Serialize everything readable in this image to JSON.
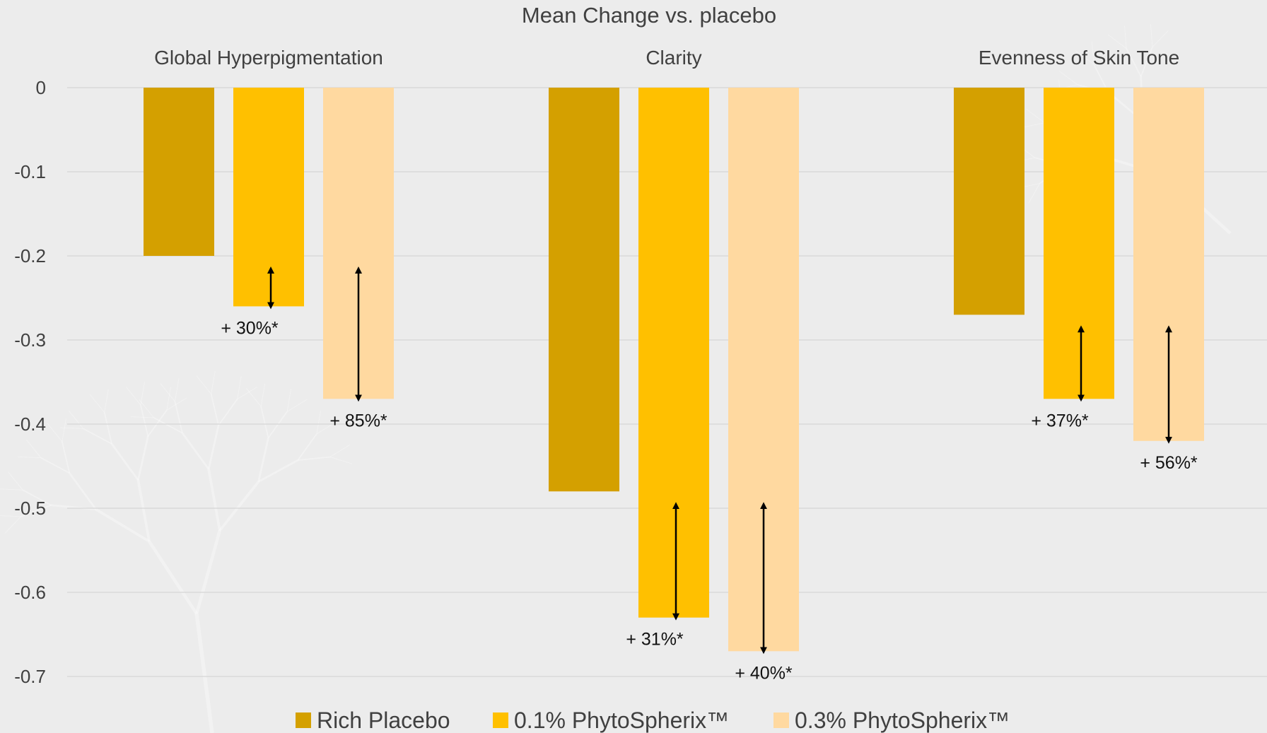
{
  "chart_data": {
    "type": "bar",
    "title": "Mean Change vs. placebo",
    "categories": [
      "Global Hyperpigmentation",
      "Clarity",
      "Evenness of Skin Tone"
    ],
    "series": [
      {
        "name": "Rich Placebo",
        "color": "#D4A000",
        "values": [
          -0.2,
          -0.48,
          -0.27
        ]
      },
      {
        "name": "0.1% PhytoSpherix™",
        "color": "#FFC000",
        "values": [
          -0.26,
          -0.63,
          -0.37
        ]
      },
      {
        "name": "0.3% PhytoSpherix™",
        "color": "#FFD9A0",
        "values": [
          -0.37,
          -0.67,
          -0.42
        ]
      }
    ],
    "annotations": [
      {
        "category": "Global Hyperpigmentation",
        "series": "0.1% PhytoSpherix™",
        "text": "+ 30%*",
        "from": -0.2,
        "to": -0.26
      },
      {
        "category": "Global Hyperpigmentation",
        "series": "0.3% PhytoSpherix™",
        "text": "+ 85%*",
        "from": -0.2,
        "to": -0.37
      },
      {
        "category": "Clarity",
        "series": "0.1% PhytoSpherix™",
        "text": "+ 31%*",
        "from": -0.48,
        "to": -0.63
      },
      {
        "category": "Clarity",
        "series": "0.3% PhytoSpherix™",
        "text": "+ 40%*",
        "from": -0.48,
        "to": -0.67
      },
      {
        "category": "Evenness of Skin Tone",
        "series": "0.1% PhytoSpherix™",
        "text": "+ 37%*",
        "from": -0.27,
        "to": -0.37
      },
      {
        "category": "Evenness of Skin Tone",
        "series": "0.3% PhytoSpherix™",
        "text": "+ 56%*",
        "from": -0.27,
        "to": -0.42
      }
    ],
    "yticks": [
      0,
      -0.1,
      -0.2,
      -0.3,
      -0.4,
      -0.5,
      -0.6,
      -0.7
    ],
    "ylim": [
      -0.75,
      0
    ],
    "grid": true,
    "legend_position": "bottom",
    "category_labels_position": "top"
  }
}
